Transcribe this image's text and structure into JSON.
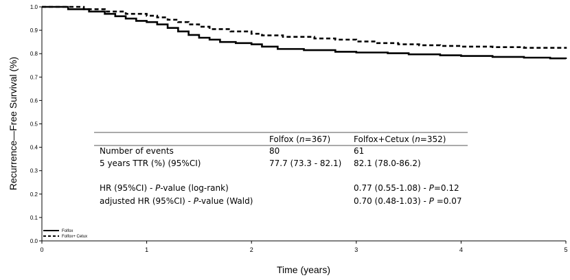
{
  "chart_data": {
    "type": "line",
    "xlabel": "Time (years)",
    "ylabel": "Recurrence—Free Survival (%)",
    "xlim": [
      0,
      5
    ],
    "ylim": [
      0,
      1.0
    ],
    "xticks": [
      "0",
      "1",
      "2",
      "3",
      "4",
      "5"
    ],
    "yticks": [
      "0.0",
      "0.1",
      "0.2",
      "0.3",
      "0.4",
      "0.5",
      "0.6",
      "0.7",
      "0.8",
      "0.9",
      "1.0"
    ],
    "grid": false,
    "legend_position": "bottom-left",
    "series": [
      {
        "name": "Folfox",
        "style": "solid",
        "color": "#000000",
        "points": [
          [
            0,
            1.0
          ],
          [
            0.25,
            0.99
          ],
          [
            0.45,
            0.98
          ],
          [
            0.6,
            0.97
          ],
          [
            0.7,
            0.96
          ],
          [
            0.8,
            0.95
          ],
          [
            0.9,
            0.94
          ],
          [
            1.0,
            0.935
          ],
          [
            1.1,
            0.925
          ],
          [
            1.2,
            0.91
          ],
          [
            1.3,
            0.895
          ],
          [
            1.4,
            0.88
          ],
          [
            1.5,
            0.868
          ],
          [
            1.6,
            0.86
          ],
          [
            1.7,
            0.85
          ],
          [
            1.85,
            0.845
          ],
          [
            2.0,
            0.84
          ],
          [
            2.1,
            0.83
          ],
          [
            2.25,
            0.82
          ],
          [
            2.5,
            0.815
          ],
          [
            2.8,
            0.808
          ],
          [
            3.0,
            0.805
          ],
          [
            3.3,
            0.802
          ],
          [
            3.5,
            0.797
          ],
          [
            3.8,
            0.793
          ],
          [
            4.0,
            0.79
          ],
          [
            4.3,
            0.786
          ],
          [
            4.6,
            0.783
          ],
          [
            4.85,
            0.78
          ],
          [
            5.0,
            0.777
          ]
        ]
      },
      {
        "name": "Folfox+ Cetux",
        "style": "dashed",
        "color": "#000000",
        "points": [
          [
            0,
            1.0
          ],
          [
            0.4,
            0.99
          ],
          [
            0.6,
            0.98
          ],
          [
            0.8,
            0.97
          ],
          [
            1.0,
            0.962
          ],
          [
            1.1,
            0.955
          ],
          [
            1.2,
            0.945
          ],
          [
            1.3,
            0.935
          ],
          [
            1.4,
            0.925
          ],
          [
            1.5,
            0.915
          ],
          [
            1.6,
            0.905
          ],
          [
            1.8,
            0.895
          ],
          [
            2.0,
            0.885
          ],
          [
            2.1,
            0.878
          ],
          [
            2.3,
            0.872
          ],
          [
            2.6,
            0.865
          ],
          [
            2.8,
            0.86
          ],
          [
            3.0,
            0.852
          ],
          [
            3.2,
            0.845
          ],
          [
            3.4,
            0.84
          ],
          [
            3.6,
            0.836
          ],
          [
            3.8,
            0.833
          ],
          [
            4.0,
            0.83
          ],
          [
            4.3,
            0.828
          ],
          [
            4.6,
            0.825
          ],
          [
            5.0,
            0.821
          ]
        ]
      }
    ]
  },
  "summary_table": {
    "columns": [
      "",
      "Folfox (n=367)",
      "Folfox+Cetux (n=352)"
    ],
    "rows": [
      [
        "Number of events",
        "80",
        "61"
      ],
      [
        "5 years TTR (%) (95%CI)",
        "77.7 (73.3 - 82.1)",
        "82.1 (78.0-86.2)"
      ],
      [
        "",
        "",
        ""
      ],
      [
        "HR (95%CI) - P-value (log-rank)",
        "",
        "0.77 (0.55-1.08) - P=0.12"
      ],
      [
        "adjusted HR (95%CI) - P-value (Wald)",
        "",
        "0.70 (0.48-1.03) - P =0.07"
      ]
    ]
  }
}
